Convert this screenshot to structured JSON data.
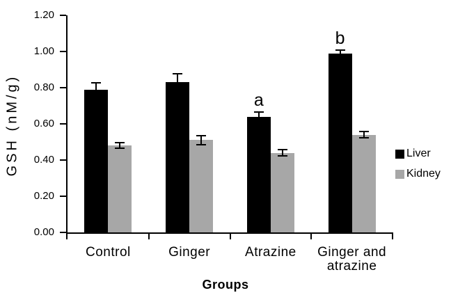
{
  "chart_data": {
    "type": "bar",
    "title": "",
    "xlabel": "Groups",
    "ylabel": "GSH (nM/g)",
    "categories": [
      "Control",
      "Ginger",
      "Atrazine",
      "Ginger and atrazine"
    ],
    "series": [
      {
        "name": "Liver",
        "color": "#000000",
        "values": [
          0.79,
          0.83,
          0.64,
          0.99
        ],
        "errors": [
          0.04,
          0.05,
          0.03,
          0.02
        ]
      },
      {
        "name": "Kidney",
        "color": "#a7a7a7",
        "values": [
          0.48,
          0.51,
          0.44,
          0.54
        ],
        "errors": [
          0.02,
          0.03,
          0.02,
          0.02
        ]
      }
    ],
    "annotations": [
      {
        "text": "a",
        "category": "Atrazine",
        "series": "Liver"
      },
      {
        "text": "b",
        "category": "Ginger and atrazine",
        "series": "Liver"
      }
    ],
    "ylim": [
      0,
      1.2
    ],
    "y_ticks": [
      "0.00",
      "0.20",
      "0.40",
      "0.60",
      "0.80",
      "1.00",
      "1.20"
    ],
    "grid": false,
    "legend_position": "right",
    "error_bars": true,
    "axis_color": "#000000"
  }
}
